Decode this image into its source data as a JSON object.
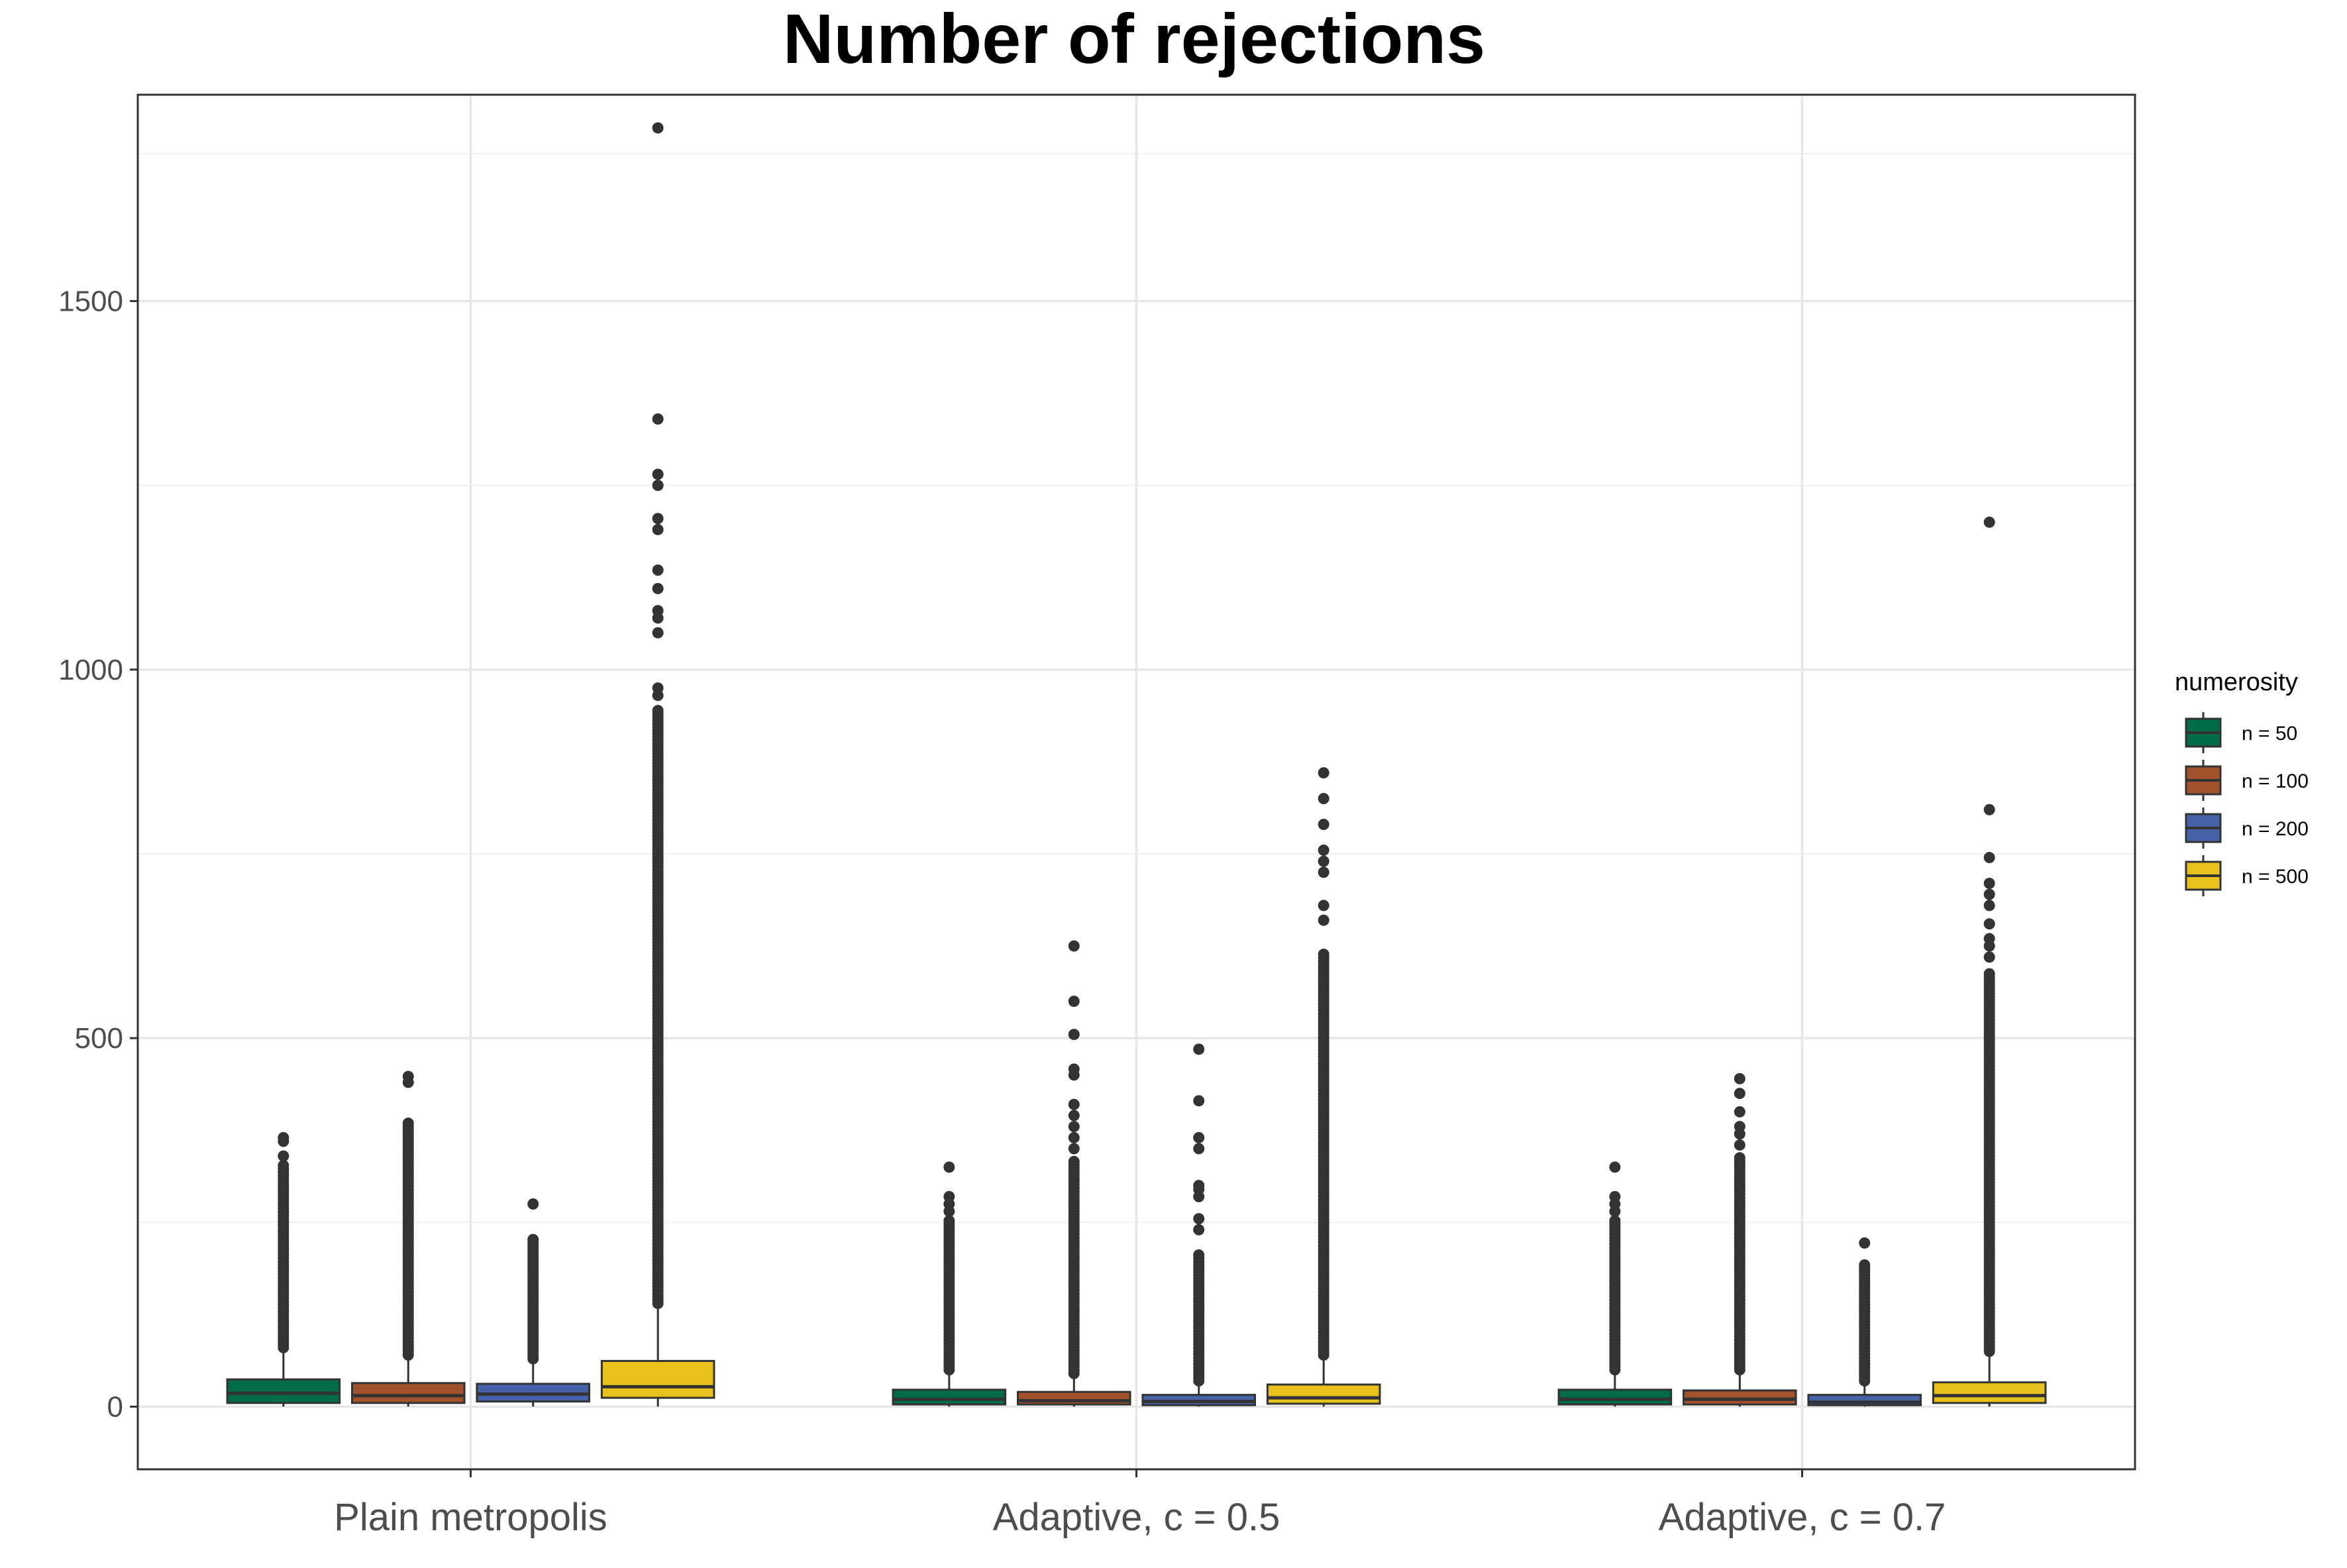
{
  "chart_data": {
    "type": "box",
    "title": "Number of rejections",
    "xlabel": "",
    "ylabel": "",
    "ylim": [
      -85,
      1780
    ],
    "y_ticks": [
      0,
      500,
      1000,
      1500
    ],
    "y_minor_ticks": [
      250,
      750,
      1250,
      1700
    ],
    "grid": true,
    "categories": [
      "Plain metropolis",
      "Adaptive, c = 0.5",
      "Adaptive, c = 0.7"
    ],
    "legend": {
      "title": "numerosity",
      "position": "right",
      "entries": [
        "n = 50",
        "n = 100",
        "n = 200",
        "n = 500"
      ]
    },
    "series": [
      {
        "name": "n = 50",
        "color": "#006B49",
        "boxes": [
          {
            "min": 0,
            "q1": 5,
            "median": 18,
            "q3": 37,
            "max": 80,
            "outliers_range": [
              80,
              330
            ],
            "outliers_sparse": [
              340,
              360,
              365
            ]
          },
          {
            "min": 0,
            "q1": 3,
            "median": 10,
            "q3": 23,
            "max": 50,
            "outliers_range": [
              50,
              255
            ],
            "outliers_sparse": [
              265,
              275,
              285,
              325
            ]
          },
          {
            "min": 0,
            "q1": 3,
            "median": 10,
            "q3": 23,
            "max": 50,
            "outliers_range": [
              50,
              255
            ],
            "outliers_sparse": [
              265,
              275,
              285,
              325
            ]
          }
        ]
      },
      {
        "name": "n = 100",
        "color": "#A0522D",
        "boxes": [
          {
            "min": 0,
            "q1": 5,
            "median": 15,
            "q3": 32,
            "max": 70,
            "outliers_range": [
              70,
              385
            ],
            "outliers_sparse": [
              440,
              448
            ]
          },
          {
            "min": 0,
            "q1": 3,
            "median": 8,
            "q3": 20,
            "max": 45,
            "outliers_range": [
              45,
              335
            ],
            "outliers_sparse": [
              350,
              365,
              380,
              395,
              410,
              450,
              458,
              505,
              550,
              625
            ]
          },
          {
            "min": 0,
            "q1": 3,
            "median": 10,
            "q3": 22,
            "max": 50,
            "outliers_range": [
              50,
              340
            ],
            "outliers_sparse": [
              355,
              370,
              380,
              400,
              425,
              445
            ]
          }
        ]
      },
      {
        "name": "n = 200",
        "color": "#4562A8",
        "boxes": [
          {
            "min": 0,
            "q1": 7,
            "median": 17,
            "q3": 31,
            "max": 65,
            "outliers_range": [
              65,
              230
            ],
            "outliers_sparse": [
              275
            ]
          },
          {
            "min": 0,
            "q1": 2,
            "median": 7,
            "q3": 16,
            "max": 35,
            "outliers_range": [
              35,
              210
            ],
            "outliers_sparse": [
              240,
              255,
              285,
              295,
              300,
              350,
              365,
              415,
              485
            ]
          },
          {
            "min": 0,
            "q1": 2,
            "median": 6,
            "q3": 16,
            "max": 35,
            "outliers_range": [
              35,
              195
            ],
            "outliers_sparse": [
              222
            ]
          }
        ]
      },
      {
        "name": "n = 500",
        "color": "#E8C21C",
        "boxes": [
          {
            "min": 0,
            "q1": 12,
            "median": 27,
            "q3": 62,
            "max": 140,
            "outliers_range": [
              140,
              945
            ],
            "outliers_sparse": [
              965,
              975,
              1050,
              1070,
              1080,
              1110,
              1135,
              1190,
              1205,
              1250,
              1265,
              1340,
              1735
            ]
          },
          {
            "min": 0,
            "q1": 4,
            "median": 12,
            "q3": 30,
            "max": 70,
            "outliers_range": [
              70,
              615
            ],
            "outliers_sparse": [
              660,
              680,
              725,
              740,
              755,
              790,
              825,
              860
            ]
          },
          {
            "min": 0,
            "q1": 5,
            "median": 15,
            "q3": 33,
            "max": 75,
            "outliers_range": [
              75,
              590
            ],
            "outliers_sparse": [
              610,
              625,
              635,
              655,
              680,
              695,
              710,
              745,
              810,
              1200
            ]
          }
        ]
      }
    ]
  }
}
